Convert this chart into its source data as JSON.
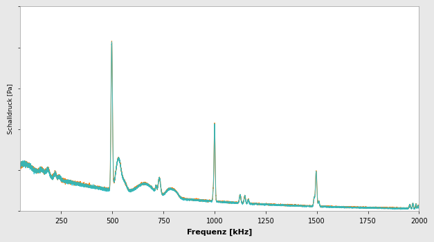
{
  "xlabel": "Frequenz [kHz]",
  "ylabel": "Schalldruck [Pa]",
  "xlim": [
    50,
    2000
  ],
  "ylim": [
    0,
    1.0
  ],
  "xticks": [
    250,
    500,
    750,
    1000,
    1250,
    1500,
    1750,
    2000
  ],
  "color_blue": "#17BECF",
  "color_orange": "#FF7F0E",
  "background_outer": "#E8E8E8",
  "background_inner": "#FFFFFF",
  "ylabel_fontsize": 6.5,
  "xlabel_fontsize": 8,
  "xlabel_fontweight": "bold",
  "tick_fontsize": 7
}
